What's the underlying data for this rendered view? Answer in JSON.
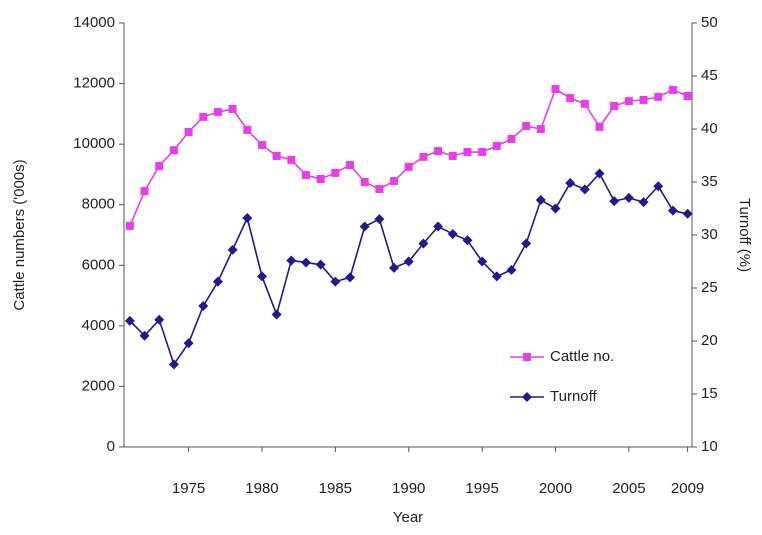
{
  "chart_data": {
    "type": "line",
    "x_label": "Year",
    "y_label": "Cattle numbers ('000s)",
    "y2_label": "Turnoff (%)",
    "x": [
      1971,
      1972,
      1973,
      1974,
      1975,
      1976,
      1977,
      1978,
      1979,
      1980,
      1981,
      1982,
      1983,
      1984,
      1985,
      1986,
      1987,
      1988,
      1989,
      1990,
      1991,
      1992,
      1993,
      1994,
      1995,
      1996,
      1997,
      1998,
      1999,
      2000,
      2001,
      2002,
      2003,
      2004,
      2005,
      2006,
      2007,
      2008,
      2009
    ],
    "series": [
      {
        "name": "Cattle no.",
        "color": "#e83ee8",
        "marker": "square",
        "values": [
          7300,
          8450,
          9280,
          9800,
          10400,
          10900,
          11060,
          11160,
          10470,
          9970,
          9610,
          9480,
          8980,
          8850,
          9050,
          9310,
          8750,
          8520,
          8780,
          9250,
          9580,
          9770,
          9610,
          9740,
          9740,
          9940,
          10170,
          10600,
          10500,
          11820,
          11520,
          11330,
          10570,
          11260,
          11420,
          11460,
          11560,
          11790,
          11590
        ]
      },
      {
        "name": "Turnoff",
        "color": "#1c1c8c",
        "marker": "diamond",
        "axis": "y2",
        "values": [
          21.9,
          20.5,
          22.0,
          17.8,
          19.8,
          23.3,
          25.6,
          28.6,
          31.6,
          26.1,
          22.5,
          27.6,
          27.4,
          27.2,
          25.6,
          26.0,
          30.8,
          31.5,
          26.9,
          27.5,
          29.2,
          30.8,
          30.1,
          29.5,
          27.5,
          26.1,
          26.7,
          29.2,
          33.3,
          32.5,
          34.9,
          34.3,
          35.8,
          33.2,
          33.5,
          33.1,
          34.6,
          32.3,
          32.0
        ]
      }
    ],
    "xlim": [
      1970.6,
      2009.3
    ],
    "xticks": [
      1975,
      1980,
      1985,
      1990,
      1995,
      2000,
      2005,
      2009
    ],
    "ylim": [
      0,
      14000
    ],
    "yticks": [
      0,
      2000,
      4000,
      6000,
      8000,
      10000,
      12000,
      14000
    ],
    "y2lim": [
      10,
      50
    ],
    "y2ticks": [
      10,
      15,
      20,
      25,
      30,
      35,
      40,
      45,
      50
    ],
    "grid": false,
    "legend": "lower right"
  }
}
